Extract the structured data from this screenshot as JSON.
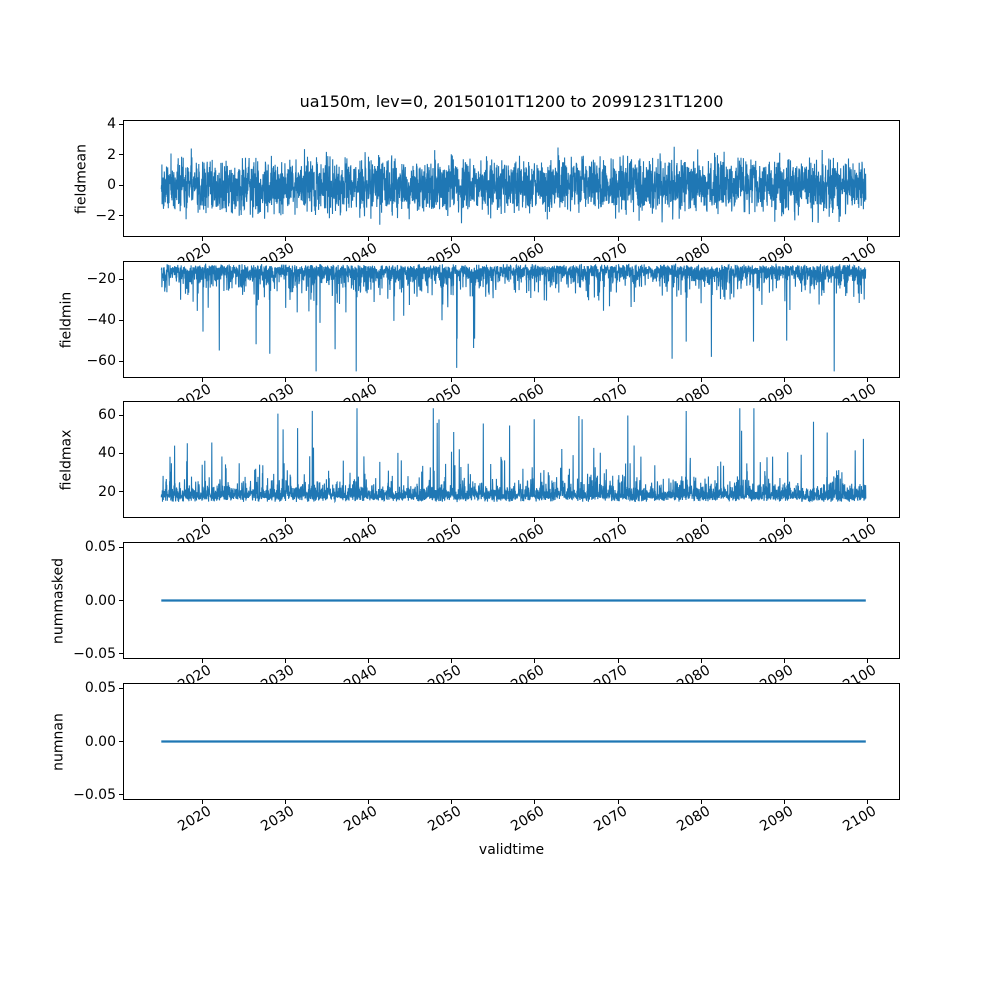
{
  "figure": {
    "title": "ua150m, lev=0, 20150101T1200 to 20991231T1200",
    "xlabel": "validtime",
    "background": "#ffffff"
  },
  "chart_data": {
    "type": "line",
    "title": "ua150m, lev=0, 20150101T1200 to 20991231T1200",
    "xlabel": "validtime",
    "line_color": "#1f77b4",
    "grid": false,
    "legend": false,
    "x_start": 2015.0,
    "x_end": 2100.0,
    "xlim": [
      2010.5,
      2104.0
    ],
    "xticks": [
      {
        "v": 2020,
        "label": "2020"
      },
      {
        "v": 2030,
        "label": "2030"
      },
      {
        "v": 2040,
        "label": "2040"
      },
      {
        "v": 2050,
        "label": "2050"
      },
      {
        "v": 2060,
        "label": "2060"
      },
      {
        "v": 2070,
        "label": "2070"
      },
      {
        "v": 2080,
        "label": "2080"
      },
      {
        "v": 2090,
        "label": "2090"
      },
      {
        "v": 2100,
        "label": "2100"
      }
    ],
    "points": 3500,
    "seed": 1337,
    "subplots": [
      {
        "ylabel": "fieldmean",
        "ylim": [
          -3.39,
          4.29
        ],
        "yticks": [
          {
            "v": 4,
            "label": "4"
          },
          {
            "v": 2,
            "label": "2"
          },
          {
            "v": 0,
            "label": "0"
          },
          {
            "v": -2,
            "label": "−2"
          }
        ],
        "series": {
          "kind": "sym",
          "scale": 1.5,
          "spike_prob": 0.002,
          "spike_factor": 1.35,
          "min": -3.05,
          "max": 4.05
        },
        "stats": {
          "approx_mean": 0,
          "approx_min": -3.0,
          "approx_max": 4.05
        }
      },
      {
        "ylabel": "fieldmin",
        "ylim": [
          -68.3,
          -11.2
        ],
        "yticks": [
          {
            "v": -20,
            "label": "−20"
          },
          {
            "v": -40,
            "label": "−40"
          },
          {
            "v": -60,
            "label": "−60"
          }
        ],
        "series": {
          "kind": "tail",
          "base": -12,
          "dir": -1,
          "band": 6,
          "jitter": 2,
          "med_prob": 0.3,
          "med_scale": 4.5,
          "deep_prob": 0.005,
          "deep_min": 25,
          "deep_max": 52,
          "clip": -65.5
        },
        "stats": {
          "approx_max": -11.5,
          "approx_min": -65.5,
          "dense_band": [
            -26,
            -12
          ]
        }
      },
      {
        "ylabel": "fieldmax",
        "ylim": [
          6.2,
          67.3
        ],
        "yticks": [
          {
            "v": 60,
            "label": "60"
          },
          {
            "v": 40,
            "label": "40"
          },
          {
            "v": 20,
            "label": "20"
          }
        ],
        "series": {
          "kind": "tail",
          "base": 14,
          "dir": 1,
          "band": 5,
          "jitter": 2.5,
          "med_prob": 0.3,
          "med_scale": 4.5,
          "deep_prob": 0.007,
          "deep_min": 22,
          "deep_max": 49,
          "clip": 64
        },
        "stats": {
          "approx_min": 12.5,
          "approx_max": 64,
          "dense_band": [
            13,
            30
          ]
        }
      },
      {
        "ylabel": "nummasked",
        "ylim": [
          -0.055,
          0.055
        ],
        "yticks": [
          {
            "v": 0.05,
            "label": "0.05"
          },
          {
            "v": 0,
            "label": "0.00"
          },
          {
            "v": -0.05,
            "label": "−0.05"
          }
        ],
        "series": {
          "kind": "const",
          "value": 0
        },
        "stats": {
          "constant": 0
        }
      },
      {
        "ylabel": "numnan",
        "ylim": [
          -0.055,
          0.055
        ],
        "yticks": [
          {
            "v": 0.05,
            "label": "0.05"
          },
          {
            "v": 0,
            "label": "0.00"
          },
          {
            "v": -0.05,
            "label": "−0.05"
          }
        ],
        "series": {
          "kind": "const",
          "value": 0
        },
        "stats": {
          "constant": 0
        }
      }
    ]
  }
}
